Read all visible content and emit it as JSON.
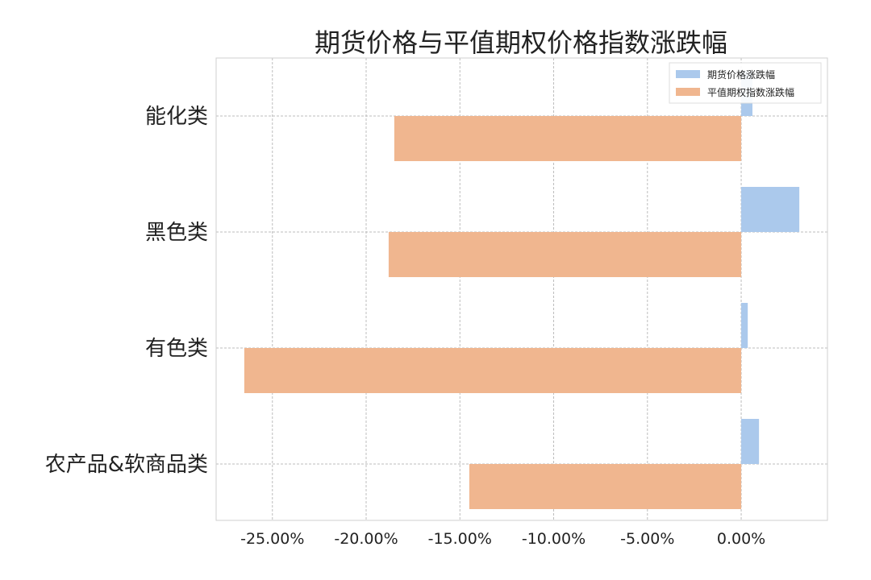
{
  "chart_data": {
    "type": "bar",
    "orientation": "horizontal",
    "title": "期货价格与平值期权价格指数涨跌幅",
    "categories": [
      "能化类",
      "黑色类",
      "有色类",
      "农产品&软商品类"
    ],
    "series": [
      {
        "name": "期货价格涨跌幅",
        "values": [
          0.6,
          3.1,
          0.35,
          0.95
        ],
        "color": "#abc9ec"
      },
      {
        "name": "平值期权指数涨跌幅",
        "values": [
          -18.5,
          -18.8,
          -26.5,
          -14.5
        ],
        "color": "#f0b68f"
      }
    ],
    "xticks": [
      "-25.00%",
      "-20.00%",
      "-15.00%",
      "-10.00%",
      "-5.00%",
      "0.00%"
    ],
    "xtick_values": [
      -25,
      -20,
      -15,
      -10,
      -5,
      0
    ],
    "xlim": [
      -28,
      4.6
    ],
    "xlabel": "",
    "ylabel": "",
    "grid": true,
    "legend_position": "top-right"
  }
}
